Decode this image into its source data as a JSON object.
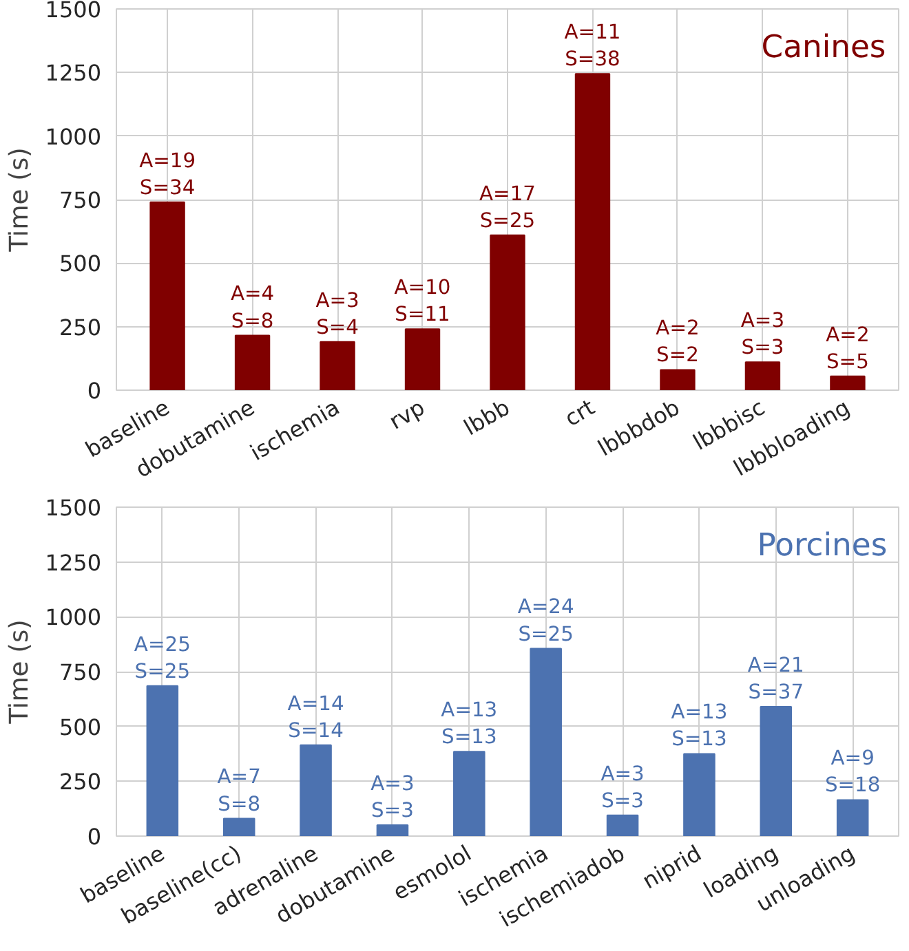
{
  "chart_data": [
    {
      "type": "bar",
      "title": "Canines",
      "ylabel": "Time (s)",
      "categories": [
        "baseline",
        "dobutamine",
        "ischemia",
        "rvp",
        "lbbb",
        "crt",
        "lbbbdob",
        "lbbbisc",
        "lbbbloading"
      ],
      "values": [
        740,
        215,
        190,
        240,
        610,
        1245,
        80,
        110,
        55
      ],
      "color": "#800000",
      "value_labels": [
        "A=19\nS=34",
        "A=4\nS=8",
        "A=3\nS=4",
        "A=10\nS=11",
        "A=17\nS=25",
        "A=11\nS=38",
        "A=2\nS=2",
        "A=3\nS=3",
        "A=2\nS=5"
      ],
      "ylim": [
        0,
        1500
      ],
      "yticks": [
        0,
        250,
        500,
        750,
        1000,
        1250,
        1500
      ],
      "grid": true
    },
    {
      "type": "bar",
      "title": "Porcines",
      "ylabel": "Time (s)",
      "categories": [
        "baseline",
        "baseline(cc)",
        "adrenaline",
        "dobutamine",
        "esmolol",
        "ischemia",
        "ischemiadob",
        "niprid",
        "loading",
        "unloading"
      ],
      "values": [
        685,
        80,
        415,
        50,
        385,
        855,
        95,
        375,
        590,
        165
      ],
      "color": "#4c72b0",
      "value_labels": [
        "A=25\nS=25",
        "A=7\nS=8",
        "A=14\nS=14",
        "A=3\nS=3",
        "A=13\nS=13",
        "A=24\nS=25",
        "A=3\nS=3",
        "A=13\nS=13",
        "A=21\nS=37",
        "A=9\nS=18"
      ],
      "ylim": [
        0,
        1500
      ],
      "yticks": [
        0,
        250,
        500,
        750,
        1000,
        1250,
        1500
      ],
      "grid": true
    }
  ]
}
